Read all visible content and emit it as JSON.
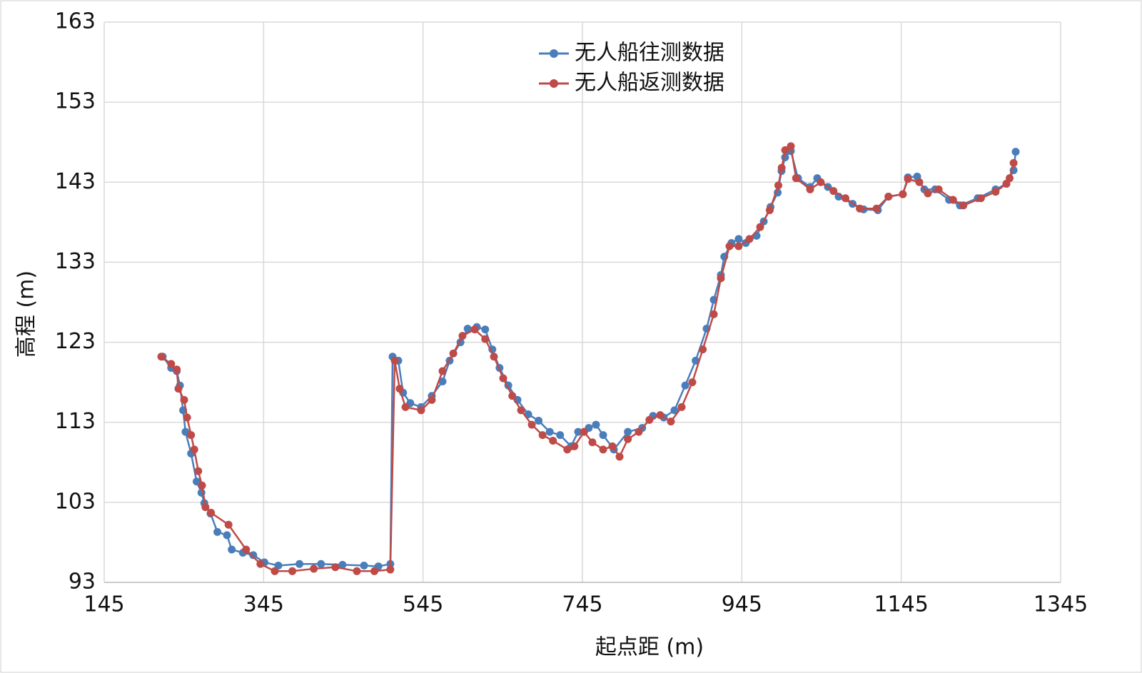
{
  "chart_data": {
    "type": "line",
    "x_label": "起点距 (m)",
    "y_label": "高程 (m)",
    "xlim": [
      145,
      1345
    ],
    "xticks": [
      145,
      345,
      545,
      745,
      945,
      1145,
      1345
    ],
    "ylim": [
      93,
      163
    ],
    "yticks": [
      93,
      103,
      113,
      123,
      133,
      143,
      153,
      163
    ],
    "grid": true,
    "legend": "top",
    "series": [
      {
        "name": "无人船往测数据",
        "color": "#4a7ebb",
        "x": [
          218.4,
          229,
          236,
          240,
          244,
          247,
          254,
          261,
          267,
          270.6,
          278.4,
          287,
          299,
          305,
          319,
          332,
          346,
          363.5,
          390,
          417,
          444,
          471,
          489,
          504,
          506.8,
          514,
          520,
          529,
          542.6,
          556,
          569.5,
          578.4,
          592,
          601,
          612.5,
          623,
          632,
          641,
          652,
          663.5,
          677,
          690,
          704,
          717,
          730.7,
          739.6,
          753,
          762,
          771,
          784.4,
          802,
          820,
          833.6,
          847,
          860.5,
          874,
          887,
          900.8,
          909.8,
          918.7,
          923,
          932,
          941,
          950,
          963.5,
          972.5,
          981,
          990,
          994.8,
          999.3,
          1006.5,
          1015.5,
          1030.7,
          1039.6,
          1053,
          1066.5,
          1084,
          1097.8,
          1115.7,
          1129,
          1147,
          1153.4,
          1165,
          1174,
          1187.5,
          1205,
          1218.7,
          1241,
          1263.4,
          1277,
          1286,
          1288.6
        ],
        "values": [
          121.2,
          119.8,
          119.4,
          117.6,
          114.5,
          111.8,
          109.1,
          105.6,
          104.2,
          102.9,
          101.6,
          99.3,
          98.9,
          97.1,
          96.7,
          96.4,
          95.5,
          95.1,
          95.3,
          95.3,
          95.2,
          95.1,
          95,
          95.3,
          121.2,
          120.7,
          116.7,
          115.4,
          114.9,
          116.3,
          118.1,
          120.7,
          123,
          124.7,
          124.9,
          124.6,
          122.1,
          119.8,
          117.6,
          115.8,
          114,
          113.2,
          111.8,
          111.4,
          110,
          111.8,
          112.3,
          112.7,
          111.4,
          109.6,
          111.8,
          112.3,
          113.8,
          113.6,
          114.5,
          117.6,
          120.7,
          124.7,
          128.3,
          131.4,
          133.7,
          135.4,
          135.9,
          135.4,
          136.3,
          138.1,
          139.9,
          141.7,
          144.4,
          146.1,
          146.9,
          143.5,
          142.4,
          143.5,
          142.4,
          141.2,
          140.3,
          139.6,
          139.5,
          141.2,
          141.5,
          143.6,
          143.7,
          142.1,
          142.1,
          140.8,
          140.1,
          141,
          142.1,
          142.8,
          144.5,
          146.8
        ]
      },
      {
        "name": "无人船返测数据",
        "color": "#be4b48",
        "x": [
          216.6,
          229,
          236,
          238.1,
          245.3,
          249,
          254,
          258,
          263,
          267.7,
          272,
          279,
          301,
          323,
          341,
          359,
          381,
          408,
          435,
          462,
          484,
          504,
          509.5,
          515.7,
          523,
          542.6,
          556,
          569.5,
          583,
          594.5,
          609.8,
          623,
          634,
          645.6,
          657,
          668,
          681.5,
          695,
          708,
          726,
          735,
          747,
          757.5,
          771,
          782.6,
          791.6,
          802,
          815.7,
          829,
          842.6,
          856,
          869.5,
          882.9,
          896,
          909.8,
          918.7,
          929.5,
          941,
          954.6,
          968,
          980,
          990.8,
          995,
          999.4,
          1006.5,
          1013,
          1030.7,
          1044,
          1060,
          1075,
          1093,
          1114,
          1129,
          1147,
          1153.4,
          1167.7,
          1178.4,
          1192,
          1210,
          1223,
          1245,
          1263.4,
          1277,
          1281,
          1286
        ],
        "values": [
          121.2,
          120.3,
          119.6,
          117.2,
          115.8,
          113.6,
          111.4,
          109.6,
          106.9,
          105.1,
          102.4,
          101.7,
          100.2,
          97.1,
          95.3,
          94.4,
          94.4,
          94.7,
          94.9,
          94.4,
          94.4,
          94.6,
          120.7,
          117.2,
          114.9,
          114.5,
          115.8,
          119.4,
          121.6,
          123.8,
          124.6,
          123.4,
          121.2,
          118.5,
          116.3,
          114.5,
          112.7,
          111.4,
          110.7,
          109.6,
          110,
          111.8,
          110.5,
          109.6,
          110,
          108.7,
          110.9,
          111.8,
          113.3,
          113.9,
          113.1,
          114.9,
          118,
          122.1,
          126.5,
          131,
          135,
          135,
          135.9,
          137.4,
          139.5,
          142.6,
          144.8,
          147,
          147.5,
          143.5,
          142.1,
          143,
          141.9,
          141,
          139.7,
          139.7,
          141.2,
          141.5,
          143.4,
          143,
          141.6,
          142.1,
          140.8,
          140.1,
          141,
          141.8,
          142.8,
          143.5,
          145.4
        ]
      }
    ]
  }
}
